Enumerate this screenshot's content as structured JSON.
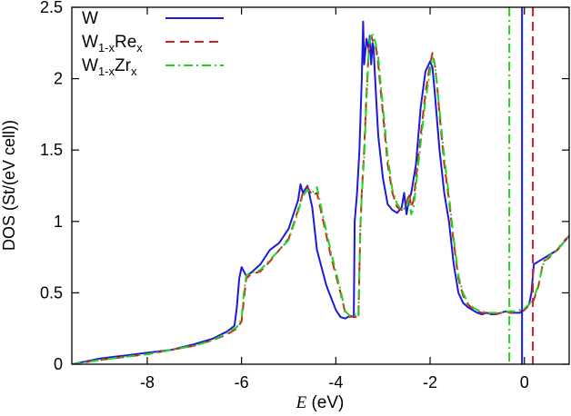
{
  "chart_data": {
    "type": "line",
    "title": "",
    "xlabel": "E (eV)",
    "xlabel_italic": "E",
    "xlabel_rest": " (eV)",
    "ylabel": "DOS (St/(eV cell))",
    "xlim": [
      -9.6,
      0.95
    ],
    "ylim": [
      0,
      2.5
    ],
    "xticks": [
      -8,
      -6,
      -4,
      -2,
      0
    ],
    "xtick_labels": [
      "-8",
      "-6",
      "-4",
      "-2",
      "0"
    ],
    "yticks": [
      0,
      0.5,
      1,
      1.5,
      2,
      2.5
    ],
    "ytick_labels": [
      "0",
      "0.5",
      "1",
      "1.5",
      "2",
      "2.5"
    ],
    "grid": false,
    "legend_position": "top-left",
    "legend": [
      {
        "base": "W",
        "sub": "",
        "suffix": "",
        "suffix_sub": ""
      },
      {
        "base": "W",
        "sub": "1-x",
        "suffix": "Re",
        "suffix_sub": "x"
      },
      {
        "base": "W",
        "sub": "1-x",
        "suffix": "Zr",
        "suffix_sub": "x"
      }
    ],
    "series": [
      {
        "name": "W",
        "color": "#1a1adb",
        "dash": "solid",
        "fermi_level": -0.05,
        "x": [
          -9.6,
          -9.0,
          -8.5,
          -8.0,
          -7.5,
          -7.0,
          -6.6,
          -6.3,
          -6.15,
          -6.1,
          -6.05,
          -6.0,
          -5.9,
          -5.8,
          -5.6,
          -5.4,
          -5.2,
          -5.0,
          -4.9,
          -4.8,
          -4.75,
          -4.7,
          -4.6,
          -4.5,
          -4.4,
          -4.2,
          -4.0,
          -3.9,
          -3.8,
          -3.7,
          -3.62,
          -3.6,
          -3.55,
          -3.5,
          -3.45,
          -3.42,
          -3.4,
          -3.35,
          -3.3,
          -3.28,
          -3.25,
          -3.22,
          -3.2,
          -3.15,
          -3.1,
          -3.0,
          -2.9,
          -2.8,
          -2.7,
          -2.6,
          -2.55,
          -2.5,
          -2.45,
          -2.4,
          -2.3,
          -2.2,
          -2.1,
          -2.0,
          -1.95,
          -1.9,
          -1.85,
          -1.8,
          -1.7,
          -1.6,
          -1.5,
          -1.4,
          -1.3,
          -1.2,
          -1.1,
          -1.0,
          -0.9,
          -0.8,
          -0.7,
          -0.6,
          -0.5,
          -0.4,
          -0.3,
          -0.2,
          -0.1,
          0.0,
          0.1,
          0.15,
          0.2,
          0.3,
          0.4,
          0.5,
          0.6,
          0.7,
          0.8,
          0.95
        ],
        "y": [
          0.0,
          0.04,
          0.06,
          0.08,
          0.1,
          0.14,
          0.18,
          0.23,
          0.27,
          0.4,
          0.6,
          0.68,
          0.62,
          0.64,
          0.7,
          0.8,
          0.85,
          0.95,
          1.05,
          1.15,
          1.26,
          1.2,
          1.25,
          1.1,
          0.8,
          0.55,
          0.38,
          0.33,
          0.32,
          0.34,
          0.33,
          1.0,
          1.2,
          1.5,
          2.0,
          2.4,
          2.1,
          2.28,
          2.2,
          2.3,
          2.1,
          2.25,
          2.22,
          1.9,
          1.6,
          1.3,
          1.12,
          1.08,
          1.06,
          1.1,
          1.2,
          1.05,
          1.15,
          1.2,
          1.4,
          1.8,
          2.05,
          2.12,
          2.08,
          1.9,
          1.7,
          1.5,
          1.2,
          1.0,
          0.7,
          0.5,
          0.43,
          0.4,
          0.38,
          0.36,
          0.35,
          0.36,
          0.35,
          0.35,
          0.36,
          0.37,
          0.36,
          0.36,
          0.36,
          0.38,
          0.42,
          0.5,
          0.7,
          0.72,
          0.74,
          0.76,
          0.78,
          0.8,
          0.84,
          0.9
        ]
      },
      {
        "name": "W1-xRex",
        "color": "#d41f1f",
        "dash": "10,6",
        "fermi_level": 0.18,
        "x": [
          -9.6,
          -9.0,
          -8.5,
          -8.0,
          -7.5,
          -7.0,
          -6.6,
          -6.3,
          -6.1,
          -6.0,
          -5.95,
          -5.9,
          -5.8,
          -5.6,
          -5.4,
          -5.2,
          -5.0,
          -4.9,
          -4.8,
          -4.7,
          -4.6,
          -4.5,
          -4.4,
          -4.3,
          -4.1,
          -3.9,
          -3.8,
          -3.7,
          -3.6,
          -3.55,
          -3.52,
          -3.48,
          -3.45,
          -3.4,
          -3.35,
          -3.3,
          -3.25,
          -3.2,
          -3.15,
          -3.1,
          -3.0,
          -2.9,
          -2.8,
          -2.7,
          -2.6,
          -2.5,
          -2.45,
          -2.4,
          -2.35,
          -2.3,
          -2.2,
          -2.1,
          -2.0,
          -1.95,
          -1.9,
          -1.85,
          -1.8,
          -1.7,
          -1.6,
          -1.5,
          -1.4,
          -1.3,
          -1.2,
          -1.1,
          -1.0,
          -0.9,
          -0.8,
          -0.7,
          -0.6,
          -0.5,
          -0.4,
          -0.3,
          -0.2,
          -0.1,
          0.0,
          0.1,
          0.2,
          0.3,
          0.4,
          0.5,
          0.6,
          0.7,
          0.8,
          0.95
        ],
        "y": [
          0.0,
          0.03,
          0.05,
          0.07,
          0.1,
          0.13,
          0.17,
          0.21,
          0.25,
          0.3,
          0.45,
          0.6,
          0.63,
          0.65,
          0.72,
          0.8,
          0.88,
          0.98,
          1.08,
          1.2,
          1.24,
          1.18,
          1.2,
          1.05,
          0.75,
          0.5,
          0.36,
          0.33,
          0.34,
          0.32,
          0.33,
          0.95,
          1.2,
          1.5,
          1.9,
          2.2,
          2.3,
          2.25,
          2.22,
          2.1,
          1.75,
          1.4,
          1.2,
          1.1,
          1.08,
          1.12,
          1.2,
          1.1,
          1.15,
          1.3,
          1.6,
          1.9,
          2.1,
          2.18,
          2.1,
          1.95,
          1.75,
          1.4,
          1.15,
          0.85,
          0.6,
          0.48,
          0.42,
          0.39,
          0.37,
          0.36,
          0.36,
          0.36,
          0.35,
          0.36,
          0.37,
          0.36,
          0.37,
          0.37,
          0.38,
          0.41,
          0.45,
          0.55,
          0.72,
          0.74,
          0.77,
          0.8,
          0.85,
          0.9
        ]
      },
      {
        "name": "W1-xZrx",
        "color": "#1fd41f",
        "dash": "10,4,2,4",
        "fermi_level": -0.32,
        "x": [
          -9.6,
          -9.0,
          -8.5,
          -8.0,
          -7.5,
          -7.0,
          -6.6,
          -6.3,
          -6.1,
          -6.0,
          -5.95,
          -5.9,
          -5.8,
          -5.6,
          -5.4,
          -5.2,
          -5.0,
          -4.9,
          -4.8,
          -4.7,
          -4.6,
          -4.5,
          -4.4,
          -4.3,
          -4.1,
          -3.9,
          -3.8,
          -3.7,
          -3.6,
          -3.55,
          -3.52,
          -3.48,
          -3.45,
          -3.4,
          -3.35,
          -3.3,
          -3.25,
          -3.2,
          -3.15,
          -3.1,
          -3.0,
          -2.9,
          -2.8,
          -2.7,
          -2.6,
          -2.5,
          -2.45,
          -2.4,
          -2.35,
          -2.3,
          -2.2,
          -2.1,
          -2.0,
          -1.95,
          -1.9,
          -1.85,
          -1.8,
          -1.7,
          -1.6,
          -1.5,
          -1.4,
          -1.3,
          -1.2,
          -1.1,
          -1.0,
          -0.9,
          -0.8,
          -0.7,
          -0.6,
          -0.5,
          -0.4,
          -0.3,
          -0.2,
          -0.1,
          0.0,
          0.1,
          0.2,
          0.3,
          0.4,
          0.5,
          0.6,
          0.7,
          0.8,
          0.95
        ],
        "y": [
          0.0,
          0.03,
          0.05,
          0.07,
          0.1,
          0.13,
          0.17,
          0.22,
          0.26,
          0.32,
          0.5,
          0.62,
          0.64,
          0.66,
          0.73,
          0.8,
          0.87,
          0.97,
          1.07,
          1.18,
          1.22,
          1.2,
          1.24,
          1.08,
          0.78,
          0.52,
          0.37,
          0.34,
          0.35,
          0.33,
          0.34,
          0.95,
          1.18,
          1.45,
          1.85,
          2.2,
          2.32,
          2.3,
          2.24,
          2.15,
          1.8,
          1.45,
          1.22,
          1.12,
          1.08,
          1.1,
          1.16,
          1.05,
          1.1,
          1.25,
          1.55,
          1.85,
          2.05,
          2.15,
          2.1,
          1.95,
          1.78,
          1.45,
          1.18,
          0.88,
          0.62,
          0.5,
          0.43,
          0.4,
          0.38,
          0.37,
          0.36,
          0.36,
          0.36,
          0.36,
          0.37,
          0.37,
          0.37,
          0.38,
          0.39,
          0.42,
          0.46,
          0.56,
          0.7,
          0.75,
          0.78,
          0.8,
          0.84,
          0.9
        ]
      }
    ]
  }
}
